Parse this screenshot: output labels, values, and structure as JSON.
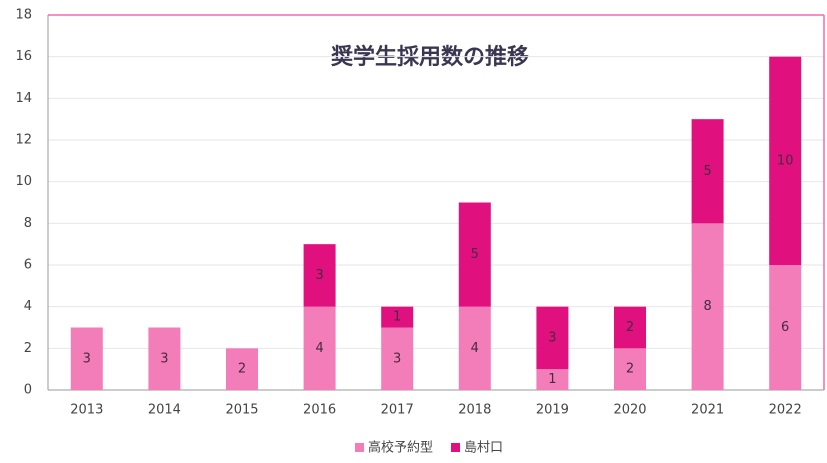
{
  "chart_data": {
    "type": "stacked_bar",
    "title": "奨学生採用数の推移",
    "categories": [
      "2013",
      "2014",
      "2015",
      "2016",
      "2017",
      "2018",
      "2019",
      "2020",
      "2021",
      "2022"
    ],
    "series": [
      {
        "name": "高校予約型",
        "color": "#f27db8",
        "values": [
          3,
          3,
          2,
          4,
          3,
          4,
          1,
          2,
          8,
          6
        ]
      },
      {
        "name": "島村口",
        "color": "#e0107f",
        "values": [
          null,
          null,
          null,
          3,
          1,
          5,
          3,
          2,
          5,
          10
        ]
      }
    ],
    "ylim": [
      0,
      18
    ],
    "yticks": [
      0,
      2,
      4,
      6,
      8,
      10,
      12,
      14,
      16,
      18
    ],
    "grid": true,
    "legend": "bottom"
  }
}
